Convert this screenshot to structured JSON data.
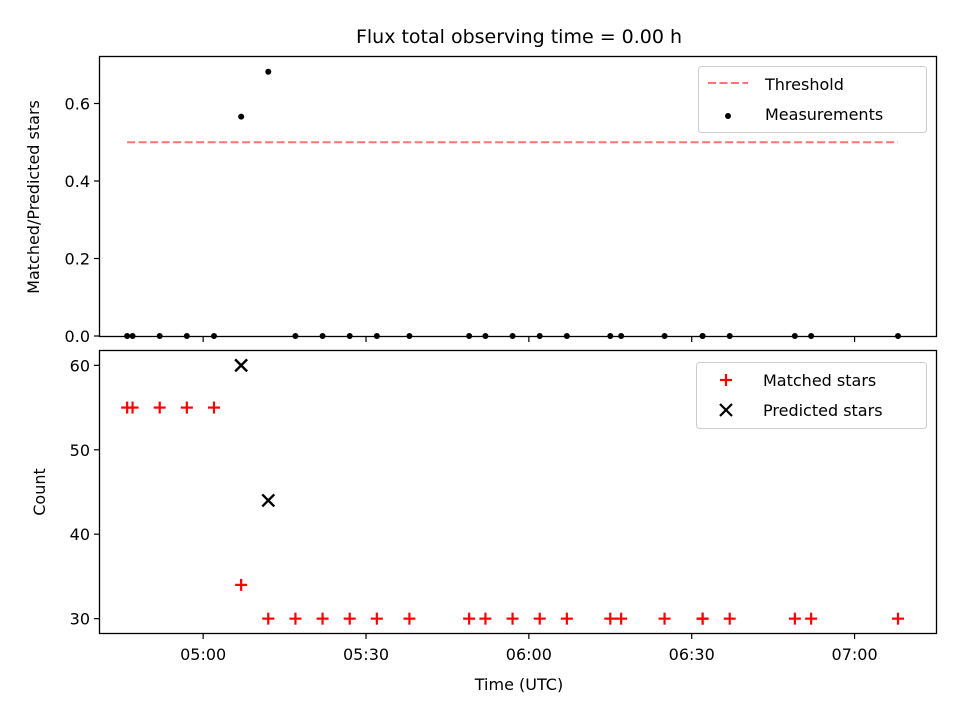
{
  "chart_data": {
    "title": "Flux total observing time = 0.00 h",
    "xlabel": "Time (UTC)",
    "x_unit": "HH:MM UTC",
    "xlim": [
      "04:41",
      "07:15"
    ],
    "xticks": [
      "05:00",
      "05:30",
      "06:00",
      "06:30",
      "07:00"
    ],
    "panels": [
      {
        "type": "scatter",
        "ylabel": "Matched/Predicted stars",
        "ylim": [
          0,
          0.72
        ],
        "yticks": [
          "0.0",
          "0.2",
          "0.4",
          "0.6"
        ],
        "legend": {
          "position": "top-right",
          "entries": [
            "Threshold",
            "Measurements"
          ]
        },
        "series": [
          {
            "name": "Threshold",
            "style": "dashed-line",
            "color": "#ff7373",
            "x": [
              "04:46",
              "07:08"
            ],
            "y": [
              0.5,
              0.5
            ]
          },
          {
            "name": "Measurements",
            "style": "dot",
            "color": "#000000",
            "x": [
              "04:46",
              "04:47",
              "04:52",
              "04:57",
              "05:02",
              "05:07",
              "05:12",
              "05:17",
              "05:22",
              "05:27",
              "05:32",
              "05:38",
              "05:49",
              "05:52",
              "05:57",
              "06:02",
              "06:07",
              "06:15",
              "06:17",
              "06:25",
              "06:32",
              "06:32",
              "06:37",
              "06:49",
              "06:52",
              "07:08"
            ],
            "y": [
              0,
              0,
              0,
              0,
              0,
              0.566,
              0.682,
              0,
              0,
              0,
              0,
              0,
              0,
              0,
              0,
              0,
              0,
              0,
              0,
              0,
              0,
              0,
              0,
              0,
              0,
              0
            ]
          }
        ]
      },
      {
        "type": "scatter",
        "ylabel": "Count",
        "ylim": [
          28.3,
          61.7
        ],
        "yticks": [
          "30",
          "40",
          "50",
          "60"
        ],
        "legend": {
          "position": "top-right",
          "entries": [
            "Matched stars",
            "Predicted stars"
          ]
        },
        "series": [
          {
            "name": "Matched stars",
            "style": "plus",
            "color": "#ff0000",
            "x": [
              "04:46",
              "04:47",
              "04:52",
              "04:57",
              "05:02",
              "05:07",
              "05:12",
              "05:17",
              "05:22",
              "05:27",
              "05:32",
              "05:38",
              "05:49",
              "05:52",
              "05:57",
              "06:02",
              "06:07",
              "06:15",
              "06:17",
              "06:25",
              "06:32",
              "06:32",
              "06:37",
              "06:49",
              "06:52",
              "07:08"
            ],
            "y": [
              55,
              55,
              55,
              55,
              55,
              34,
              30,
              30,
              30,
              30,
              30,
              30,
              30,
              30,
              30,
              30,
              30,
              30,
              30,
              30,
              30,
              30,
              30,
              30,
              30,
              30
            ]
          },
          {
            "name": "Predicted stars",
            "style": "x",
            "color": "#000000",
            "x": [
              "05:07",
              "05:12"
            ],
            "y": [
              60,
              44
            ]
          }
        ]
      }
    ]
  }
}
